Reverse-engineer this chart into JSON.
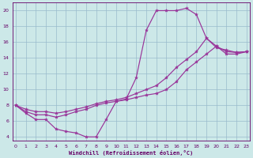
{
  "bg_color": "#cce8e8",
  "line_color": "#993399",
  "grid_color": "#99bbcc",
  "text_color": "#660066",
  "xlabel": "Windchill (Refroidissement éolien,°C)",
  "curve1_x": [
    0,
    1,
    2,
    3,
    4,
    5,
    6,
    7,
    8,
    9,
    10,
    11,
    12,
    13,
    14,
    15,
    16,
    17,
    18,
    19,
    20,
    21,
    22,
    23
  ],
  "curve1_y": [
    8.0,
    7.0,
    6.2,
    6.2,
    5.0,
    4.7,
    4.5,
    4.0,
    4.0,
    6.2,
    8.5,
    8.8,
    11.5,
    17.5,
    20.0,
    20.0,
    20.0,
    20.3,
    19.5,
    16.5,
    15.3,
    15.0,
    14.7,
    14.8
  ],
  "curve2_x": [
    0,
    1,
    2,
    3,
    4,
    5,
    6,
    7,
    8,
    9,
    10,
    11,
    12,
    13,
    14,
    15,
    16,
    17,
    18,
    19,
    20,
    21,
    22,
    23
  ],
  "curve2_y": [
    8.0,
    7.2,
    6.8,
    6.8,
    6.5,
    6.8,
    7.2,
    7.5,
    8.0,
    8.3,
    8.5,
    8.7,
    9.0,
    9.3,
    9.5,
    10.0,
    11.0,
    12.5,
    13.5,
    14.5,
    15.5,
    14.5,
    14.5,
    14.8
  ],
  "curve3_x": [
    0,
    1,
    2,
    3,
    4,
    5,
    6,
    7,
    8,
    9,
    10,
    11,
    12,
    13,
    14,
    15,
    16,
    17,
    18,
    19,
    20,
    21,
    22,
    23
  ],
  "curve3_y": [
    8.0,
    7.5,
    7.2,
    7.2,
    7.0,
    7.2,
    7.5,
    7.8,
    8.2,
    8.5,
    8.7,
    9.0,
    9.5,
    10.0,
    10.5,
    11.5,
    12.8,
    13.8,
    14.8,
    16.5,
    15.5,
    14.8,
    14.7,
    14.8
  ],
  "xlim": [
    -0.3,
    23.3
  ],
  "ylim": [
    3.5,
    21.0
  ],
  "xticks": [
    0,
    1,
    2,
    3,
    4,
    5,
    6,
    7,
    8,
    9,
    10,
    11,
    12,
    13,
    14,
    15,
    16,
    17,
    18,
    19,
    20,
    21,
    22,
    23
  ],
  "yticks": [
    4,
    6,
    8,
    10,
    12,
    14,
    16,
    18,
    20
  ]
}
